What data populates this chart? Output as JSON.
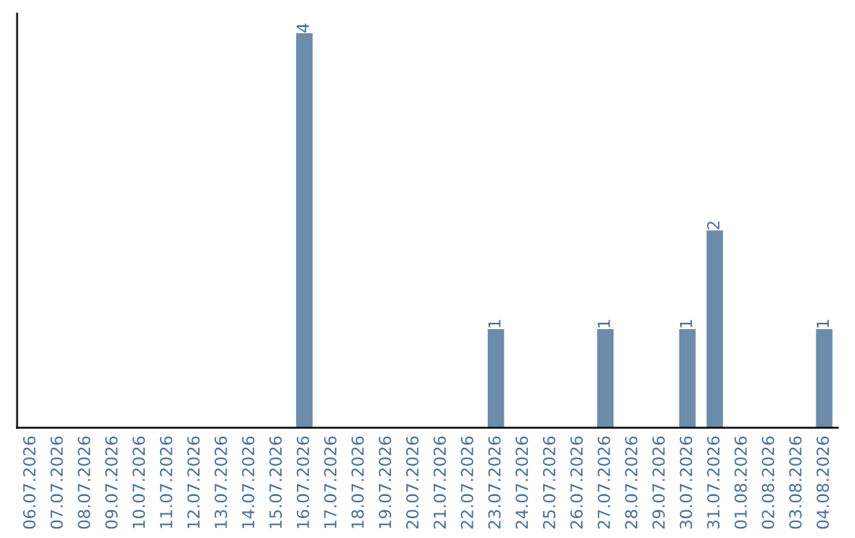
{
  "chart_data": {
    "type": "bar",
    "categories": [
      "06.07.2026",
      "07.07.2026",
      "08.07.2026",
      "09.07.2026",
      "10.07.2026",
      "11.07.2026",
      "12.07.2026",
      "13.07.2026",
      "14.07.2026",
      "15.07.2026",
      "16.07.2026",
      "17.07.2026",
      "18.07.2026",
      "19.07.2026",
      "20.07.2026",
      "21.07.2026",
      "22.07.2026",
      "23.07.2026",
      "24.07.2026",
      "25.07.2026",
      "26.07.2026",
      "27.07.2026",
      "28.07.2026",
      "29.07.2026",
      "30.07.2026",
      "31.07.2026",
      "01.08.2026",
      "02.08.2026",
      "03.08.2026",
      "04.08.2026"
    ],
    "values": [
      0,
      0,
      0,
      0,
      0,
      0,
      0,
      0,
      0,
      0,
      4,
      0,
      0,
      0,
      0,
      0,
      0,
      1,
      0,
      0,
      0,
      1,
      0,
      0,
      1,
      2,
      0,
      0,
      0,
      1
    ],
    "value_labels": [
      null,
      null,
      null,
      null,
      null,
      null,
      null,
      null,
      null,
      null,
      "4",
      null,
      null,
      null,
      null,
      null,
      null,
      "1",
      null,
      null,
      null,
      "1",
      null,
      null,
      "1",
      "2",
      null,
      null,
      null,
      "1"
    ],
    "color": "#6b8cab",
    "ylim": [
      0,
      4.2
    ],
    "tick_labels": "x",
    "grid": false
  }
}
